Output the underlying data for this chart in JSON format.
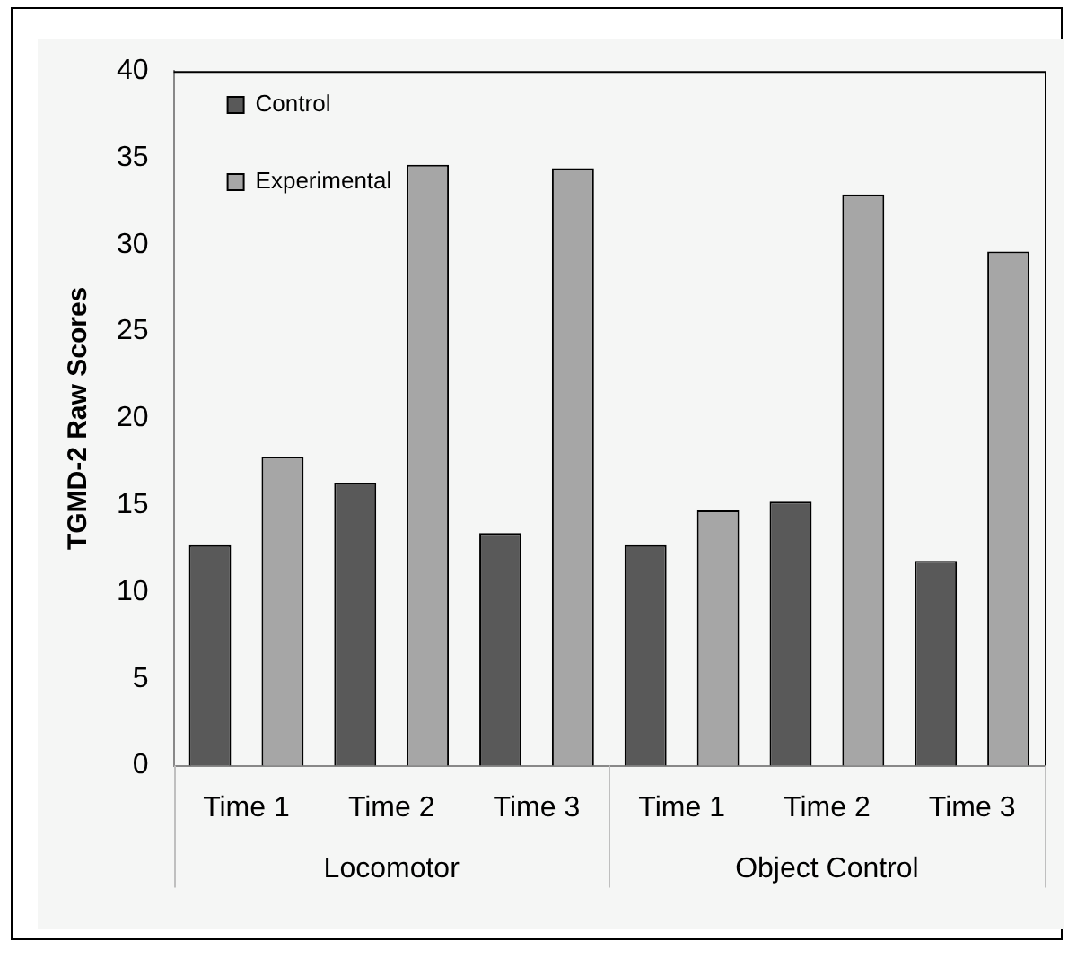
{
  "chart_data": {
    "type": "bar",
    "ylabel": "TGMD-2 Raw Scores",
    "categories": [
      "Time 1",
      "Time 2",
      "Time 3",
      "Time 1",
      "Time 2",
      "Time 3"
    ],
    "series": [
      {
        "name": "Control",
        "color": "#595959",
        "values": [
          12.7,
          16.3,
          13.4,
          12.7,
          15.2,
          11.8
        ]
      },
      {
        "name": "Experimental",
        "color": "#a6a6a6",
        "values": [
          17.8,
          34.6,
          34.4,
          14.7,
          32.9,
          29.6
        ]
      }
    ],
    "annotations": [
      "Locomotor",
      "Object Control"
    ],
    "ylim": [
      0,
      40
    ],
    "yticks": [
      0,
      5,
      10,
      15,
      20,
      25,
      30,
      35,
      40
    ],
    "grid": false,
    "legend": "top left"
  }
}
